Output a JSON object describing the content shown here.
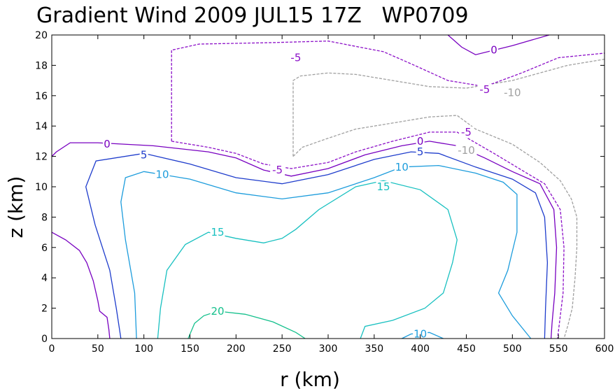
{
  "chart_data": {
    "type": "contour",
    "title": "Gradient Wind 2009 JUL15 17Z   WP0709",
    "xlabel": "r (km)",
    "ylabel": "z (km)",
    "xlim": [
      0,
      600
    ],
    "ylim": [
      0,
      20
    ],
    "xticks": [
      0,
      50,
      100,
      150,
      200,
      250,
      300,
      350,
      400,
      450,
      500,
      550,
      600
    ],
    "yticks": [
      0,
      2,
      4,
      6,
      8,
      10,
      12,
      14,
      16,
      18,
      20
    ],
    "grid": false,
    "levels": [
      {
        "value": -10,
        "label": "-10",
        "color": "#a0a0a0",
        "dash": true,
        "paths": [
          [
            [
              262,
              12.0
            ],
            [
              262,
              17.0
            ],
            [
              270,
              17.3
            ],
            [
              300,
              17.5
            ],
            [
              330,
              17.4
            ],
            [
              370,
              17.0
            ],
            [
              410,
              16.6
            ],
            [
              450,
              16.5
            ],
            [
              500,
              17.0
            ],
            [
              560,
              18.0
            ],
            [
              600,
              18.4
            ]
          ],
          [
            [
              262,
              12.0
            ],
            [
              272,
              12.6
            ],
            [
              300,
              13.2
            ],
            [
              330,
              13.8
            ],
            [
              370,
              14.2
            ],
            [
              410,
              14.6
            ],
            [
              440,
              14.7
            ],
            [
              460,
              13.8
            ],
            [
              500,
              12.8
            ],
            [
              530,
              11.6
            ],
            [
              552,
              10.4
            ],
            [
              564,
              9.2
            ],
            [
              570,
              8.0
            ],
            [
              570,
              6.0
            ],
            [
              568,
              4.0
            ],
            [
              565,
              2.0
            ],
            [
              560,
              0.8
            ],
            [
              556,
              0.0
            ]
          ]
        ],
        "labels": [
          {
            "text": "-10",
            "x": 450,
            "y": 12.4
          },
          {
            "text": "-10",
            "x": 500,
            "y": 16.2
          }
        ]
      },
      {
        "value": -5,
        "label": "-5",
        "color": "#8c10c8",
        "dash": true,
        "paths": [
          [
            [
              130,
              13.0
            ],
            [
              130,
              19.0
            ],
            [
              160,
              19.4
            ],
            [
              240,
              19.5
            ],
            [
              300,
              19.6
            ],
            [
              360,
              18.9
            ],
            [
              390,
              18.1
            ],
            [
              430,
              17.0
            ],
            [
              470,
              16.6
            ],
            [
              510,
              17.5
            ],
            [
              550,
              18.5
            ],
            [
              600,
              18.8
            ]
          ],
          [
            [
              130,
              13.0
            ],
            [
              170,
              12.6
            ],
            [
              200,
              12.2
            ],
            [
              230,
              11.5
            ],
            [
              260,
              11.2
            ],
            [
              300,
              11.6
            ],
            [
              330,
              12.3
            ],
            [
              370,
              13.0
            ],
            [
              410,
              13.6
            ],
            [
              440,
              13.6
            ],
            [
              480,
              12.2
            ],
            [
              510,
              11.1
            ],
            [
              535,
              10.2
            ],
            [
              552,
              8.5
            ],
            [
              556,
              6.0
            ],
            [
              555,
              3.0
            ],
            [
              551,
              1.0
            ],
            [
              549,
              0.0
            ]
          ]
        ],
        "labels": [
          {
            "text": "-5",
            "x": 245,
            "y": 11.1
          },
          {
            "text": "-5",
            "x": 265,
            "y": 18.5
          },
          {
            "text": "-5",
            "x": 450,
            "y": 13.6
          },
          {
            "text": "-5",
            "x": 470,
            "y": 16.4
          }
        ]
      },
      {
        "value": 0,
        "label": "0",
        "color": "#7800c0",
        "dash": false,
        "paths": [
          [
            [
              0,
              12.0
            ],
            [
              5,
              12.3
            ],
            [
              20,
              12.9
            ],
            [
              50,
              12.9
            ],
            [
              110,
              12.7
            ],
            [
              170,
              12.3
            ],
            [
              200,
              11.9
            ],
            [
              230,
              11.1
            ],
            [
              260,
              10.7
            ],
            [
              300,
              11.2
            ],
            [
              340,
              12.1
            ],
            [
              380,
              12.7
            ],
            [
              410,
              13.0
            ],
            [
              440,
              12.7
            ],
            [
              470,
              11.9
            ],
            [
              500,
              11.0
            ],
            [
              530,
              10.2
            ],
            [
              545,
              8.5
            ],
            [
              548,
              6.0
            ],
            [
              546,
              3.0
            ],
            [
              543,
              1.0
            ],
            [
              542,
              0.0
            ]
          ],
          [
            [
              0,
              7.0
            ],
            [
              15,
              6.5
            ],
            [
              30,
              5.8
            ],
            [
              38,
              5.0
            ],
            [
              45,
              3.8
            ],
            [
              50,
              2.5
            ],
            [
              52,
              1.8
            ],
            [
              60,
              1.4
            ],
            [
              62,
              0.6
            ],
            [
              63,
              0.0
            ]
          ],
          [
            [
              430,
              20.0
            ],
            [
              445,
              19.2
            ],
            [
              460,
              18.7
            ],
            [
              500,
              19.3
            ],
            [
              540,
              20.0
            ]
          ]
        ],
        "labels": [
          {
            "text": "0",
            "x": 60,
            "y": 12.8
          },
          {
            "text": "0",
            "x": 400,
            "y": 13.0
          },
          {
            "text": "0",
            "x": 480,
            "y": 19.0
          }
        ]
      },
      {
        "value": 5,
        "label": "5",
        "color": "#1e3ccc",
        "dash": false,
        "paths": [
          [
            [
              75,
              0.0
            ],
            [
              70,
              2.0
            ],
            [
              63,
              4.5
            ],
            [
              47,
              7.5
            ],
            [
              37,
              10.0
            ],
            [
              48,
              11.7
            ],
            [
              100,
              12.2
            ],
            [
              150,
              11.5
            ],
            [
              200,
              10.6
            ],
            [
              250,
              10.2
            ],
            [
              300,
              10.8
            ],
            [
              350,
              11.8
            ],
            [
              390,
              12.3
            ],
            [
              420,
              12.2
            ],
            [
              460,
              11.3
            ],
            [
              500,
              10.5
            ],
            [
              525,
              9.6
            ],
            [
              535,
              8.0
            ],
            [
              538,
              5.0
            ],
            [
              536,
              2.0
            ],
            [
              535,
              0.0
            ]
          ]
        ],
        "labels": [
          {
            "text": "5",
            "x": 100,
            "y": 12.1
          },
          {
            "text": "5",
            "x": 400,
            "y": 12.3
          }
        ]
      },
      {
        "value": 10,
        "label": "10",
        "color": "#1c9cdc",
        "dash": false,
        "paths": [
          [
            [
              92,
              0.0
            ],
            [
              90,
              3.0
            ],
            [
              80,
              6.5
            ],
            [
              75,
              9.0
            ],
            [
              80,
              10.6
            ],
            [
              100,
              11.0
            ],
            [
              150,
              10.5
            ],
            [
              200,
              9.6
            ],
            [
              250,
              9.2
            ],
            [
              300,
              9.6
            ],
            [
              350,
              10.6
            ],
            [
              380,
              11.3
            ],
            [
              420,
              11.4
            ],
            [
              460,
              10.9
            ],
            [
              490,
              10.3
            ],
            [
              505,
              9.5
            ],
            [
              505,
              7.0
            ],
            [
              495,
              4.5
            ],
            [
              485,
              3.0
            ],
            [
              500,
              1.5
            ],
            [
              520,
              0.0
            ]
          ],
          [
            [
              380,
              0.0
            ],
            [
              390,
              0.3
            ],
            [
              410,
              0.4
            ],
            [
              425,
              0.0
            ]
          ]
        ],
        "labels": [
          {
            "text": "10",
            "x": 120,
            "y": 10.8
          },
          {
            "text": "10",
            "x": 380,
            "y": 11.3
          },
          {
            "text": "10",
            "x": 400,
            "y": 0.3
          }
        ]
      },
      {
        "value": 15,
        "label": "15",
        "color": "#18c0c0",
        "dash": false,
        "paths": [
          [
            [
              115,
              0.0
            ],
            [
              118,
              2.0
            ],
            [
              125,
              4.5
            ],
            [
              145,
              6.2
            ],
            [
              170,
              7.0
            ],
            [
              200,
              6.6
            ],
            [
              230,
              6.3
            ],
            [
              250,
              6.6
            ],
            [
              265,
              7.2
            ],
            [
              290,
              8.5
            ],
            [
              330,
              10.0
            ],
            [
              360,
              10.4
            ],
            [
              400,
              9.8
            ],
            [
              430,
              8.5
            ],
            [
              440,
              6.5
            ],
            [
              435,
              5.0
            ],
            [
              425,
              3.0
            ],
            [
              405,
              2.0
            ],
            [
              370,
              1.2
            ],
            [
              340,
              0.8
            ],
            [
              335,
              0.0
            ]
          ]
        ],
        "labels": [
          {
            "text": "15",
            "x": 180,
            "y": 7.0
          },
          {
            "text": "15",
            "x": 360,
            "y": 10.0
          }
        ]
      },
      {
        "value": 20,
        "label": "20",
        "color": "#14c08c",
        "dash": false,
        "paths": [
          [
            [
              148,
              0.0
            ],
            [
              155,
              1.0
            ],
            [
              165,
              1.5
            ],
            [
              180,
              1.8
            ],
            [
              210,
              1.6
            ],
            [
              240,
              1.1
            ],
            [
              265,
              0.4
            ],
            [
              275,
              0.0
            ]
          ]
        ],
        "labels": [
          {
            "text": "20",
            "x": 180,
            "y": 1.8
          }
        ]
      }
    ]
  }
}
